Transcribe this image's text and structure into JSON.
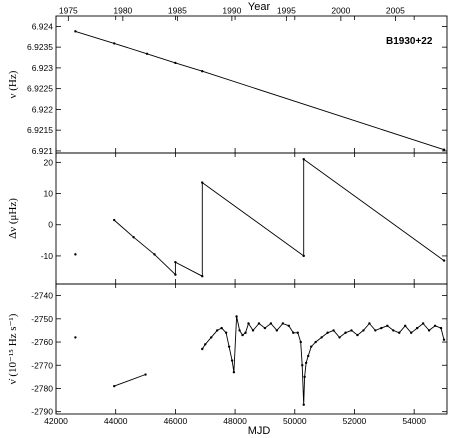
{
  "chart_data": {
    "type": "line",
    "top_axis": {
      "label": "Year",
      "ticks": [
        "1975",
        "1980",
        "1985",
        "1990",
        "1995",
        "2000",
        "2005",
        "2010"
      ],
      "tick_mjd": [
        42413,
        44239,
        46066,
        47892,
        49718,
        51544,
        53371,
        55197
      ]
    },
    "x": {
      "label": "MJD",
      "lim": [
        42000,
        55100
      ],
      "ticks": [
        42000,
        44000,
        46000,
        48000,
        50000,
        52000,
        54000
      ],
      "tick_labels": [
        "42000",
        "44000",
        "46000",
        "48000",
        "50000",
        "52000",
        "54000"
      ]
    },
    "annotation": "B1930+22",
    "panels": [
      {
        "ylabel": "ν (Hz)",
        "ylim": [
          6.92095,
          6.92425
        ],
        "ticks": [
          6.921,
          6.9215,
          6.922,
          6.9225,
          6.923,
          6.9235,
          6.924
        ],
        "tick_labels": [
          "6.921",
          "6.9215",
          "6.922",
          "6.9225",
          "6.923",
          "6.9235",
          "6.924"
        ],
        "series": [
          {
            "x": [
              42650,
              43950,
              45050,
              46000,
              46900,
              55000
            ],
            "y": [
              6.92388,
              6.92359,
              6.92334,
              6.92312,
              6.92292,
              6.92103
            ]
          }
        ]
      },
      {
        "ylabel": "Δν (μHz)",
        "ylim": [
          -19,
          23
        ],
        "ticks": [
          -10,
          0,
          10,
          20
        ],
        "tick_labels": [
          "-10",
          "0",
          "10",
          "20"
        ],
        "series": [
          {
            "x": [
              42650
            ],
            "y": [
              -9.5
            ]
          },
          {
            "x": [
              43950,
              44600,
              45300,
              46000,
              46000,
              46900,
              46900,
              50300,
              50300,
              55000
            ],
            "y": [
              1.5,
              -4,
              -9.5,
              -16,
              -12,
              -16.5,
              13.5,
              -10,
              21,
              -11.5
            ]
          }
        ]
      },
      {
        "ylabel": "ν̇ (10⁻¹⁵ Hz s⁻¹)",
        "ylim": [
          -2791,
          -2735
        ],
        "ticks": [
          -2790,
          -2780,
          -2770,
          -2760,
          -2750,
          -2740
        ],
        "tick_labels": [
          "-2790",
          "-2780",
          "-2770",
          "-2760",
          "-2750",
          "-2740"
        ],
        "series": [
          {
            "x": [
              42650
            ],
            "y": [
              -2758
            ]
          },
          {
            "x": [
              43950,
              45000
            ],
            "y": [
              -2779,
              -2774
            ]
          },
          {
            "x": [
              46900,
              47000,
              47200,
              47400,
              47550,
              47700,
              47800,
              47900,
              47960,
              48050,
              48150,
              48250,
              48350,
              48450,
              48600,
              48800,
              49000,
              49200,
              49400,
              49600,
              49800,
              49950,
              50100,
              50200,
              50250,
              50300,
              50330,
              50380,
              50450,
              50550,
              50700,
              50900,
              51100,
              51300,
              51500,
              51700,
              51900,
              52100,
              52300,
              52500,
              52700,
              52900,
              53100,
              53300,
              53500,
              53700,
              53900,
              54100,
              54300,
              54500,
              54700,
              54900,
              55000
            ],
            "y": [
              -2763,
              -2761,
              -2758,
              -2755,
              -2754,
              -2756,
              -2762,
              -2768,
              -2773,
              -2749,
              -2755,
              -2757,
              -2756,
              -2752,
              -2755,
              -2752,
              -2754,
              -2752,
              -2755,
              -2752,
              -2753,
              -2756,
              -2756,
              -2760,
              -2770,
              -2787,
              -2775,
              -2769,
              -2766,
              -2762,
              -2760,
              -2758,
              -2756,
              -2755,
              -2758,
              -2756,
              -2755,
              -2757,
              -2755,
              -2752,
              -2755,
              -2754,
              -2753,
              -2755,
              -2756,
              -2753,
              -2756,
              -2754,
              -2752,
              -2755,
              -2753,
              -2754,
              -2759
            ]
          }
        ]
      }
    ]
  }
}
